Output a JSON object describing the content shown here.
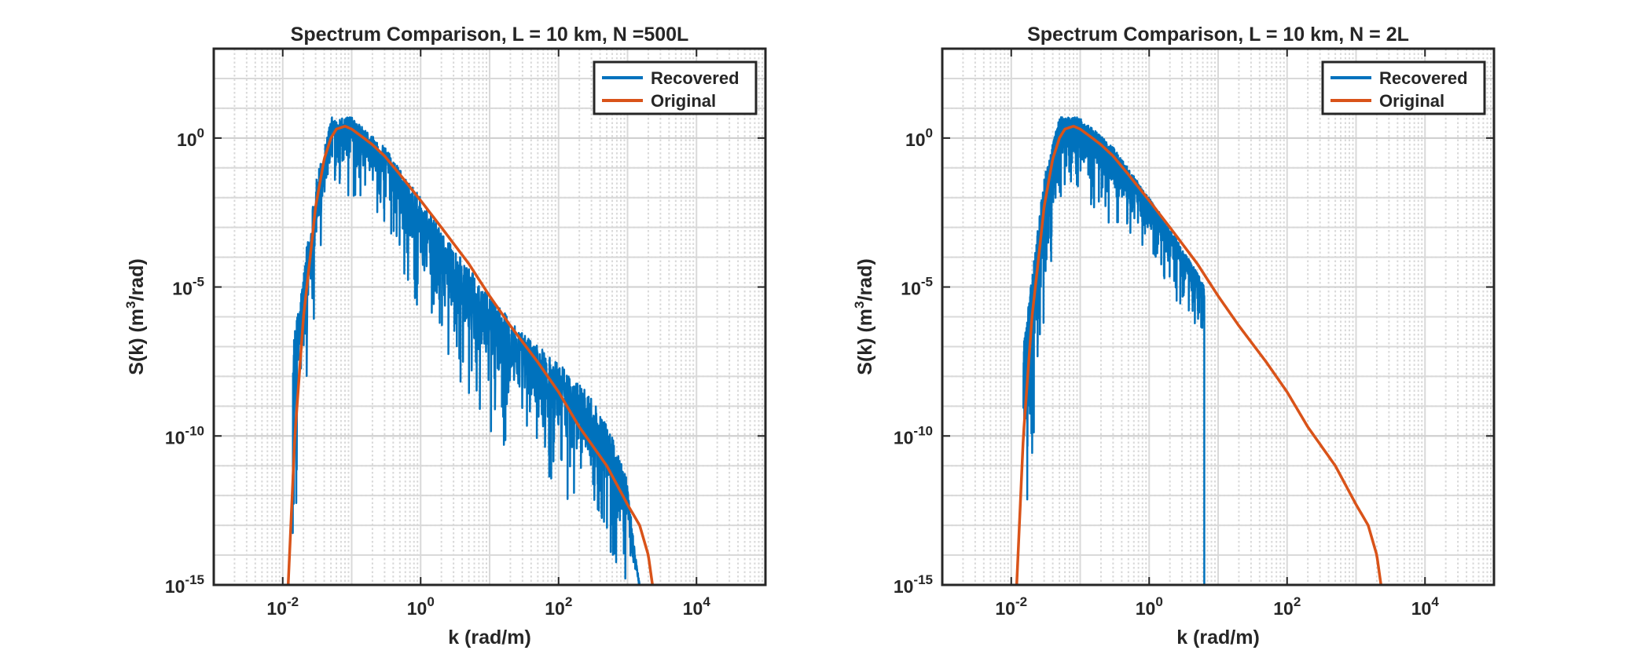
{
  "chart_data": [
    {
      "type": "line",
      "title": "Spectrum Comparison, L = 10 km, N =500L",
      "xlabel": "k (rad/m)",
      "ylabel": "S(k) (m^3/rad)",
      "xscale": "log",
      "yscale": "log",
      "xlim": [
        0.001,
        100000
      ],
      "ylim": [
        1e-15,
        1000
      ],
      "xticks": [
        0.01,
        1,
        100,
        10000
      ],
      "xtick_labels": [
        {
          "base": "10",
          "exp": "-2"
        },
        {
          "base": "10",
          "exp": "0"
        },
        {
          "base": "10",
          "exp": "2"
        },
        {
          "base": "10",
          "exp": "4"
        }
      ],
      "yticks": [
        1e-15,
        1e-10,
        1e-05,
        1
      ],
      "ytick_labels": [
        {
          "base": "10",
          "exp": "-15"
        },
        {
          "base": "10",
          "exp": "-10"
        },
        {
          "base": "10",
          "exp": "-5"
        },
        {
          "base": "10",
          "exp": "0"
        }
      ],
      "grid": "major and minor",
      "legend_position": "top-right",
      "series": [
        {
          "name": "Recovered",
          "color": "#0072BD",
          "style": "noisy",
          "band": {
            "x": [
              0.014,
              0.03,
              0.05,
              0.1,
              0.3,
              1,
              3,
              10,
              30,
              100,
              300,
              600,
              1000,
              1300,
              1500
            ],
            "upper": [
              1e-07,
              0.03,
              5,
              5,
              0.5,
              0.01,
              0.0002,
              5e-06,
              3e-07,
              3e-08,
              2e-09,
              1e-10,
              3e-12,
              1e-14,
              1e-15
            ],
            "lower": [
              1e-15,
              1e-06,
              0.01,
              0.01,
              0.001,
              1e-06,
              1e-08,
              1e-10,
              1e-11,
              1e-12,
              1e-13,
              1e-14,
              1e-15,
              1e-15,
              1e-15
            ]
          }
        },
        {
          "name": "Original",
          "color": "#D95319",
          "x": [
            0.012,
            0.015,
            0.02,
            0.025,
            0.03,
            0.04,
            0.05,
            0.06,
            0.08,
            0.1,
            0.15,
            0.2,
            0.3,
            0.5,
            1,
            2,
            5,
            10,
            20,
            50,
            100,
            200,
            500,
            1000,
            1500,
            2000,
            2300
          ],
          "y": [
            1e-15,
            1e-10,
            1e-06,
            0.0001,
            0.005,
            0.2,
            1,
            2,
            2.5,
            2,
            1,
            0.6,
            0.25,
            0.06,
            0.008,
            0.001,
            6e-05,
            5e-06,
            5e-07,
            3e-08,
            3e-09,
            2e-10,
            1e-11,
            5e-13,
            1e-13,
            1e-14,
            1e-15
          ]
        }
      ]
    },
    {
      "type": "line",
      "title": "Spectrum Comparison, L = 10 km, N = 2L",
      "xlabel": "k (rad/m)",
      "ylabel": "S(k) (m^3/rad)",
      "xscale": "log",
      "yscale": "log",
      "xlim": [
        0.001,
        100000
      ],
      "ylim": [
        1e-15,
        1000
      ],
      "xticks": [
        0.01,
        1,
        100,
        10000
      ],
      "xtick_labels": [
        {
          "base": "10",
          "exp": "-2"
        },
        {
          "base": "10",
          "exp": "0"
        },
        {
          "base": "10",
          "exp": "2"
        },
        {
          "base": "10",
          "exp": "4"
        }
      ],
      "yticks": [
        1e-15,
        1e-10,
        1e-05,
        1
      ],
      "ytick_labels": [
        {
          "base": "10",
          "exp": "-15"
        },
        {
          "base": "10",
          "exp": "-10"
        },
        {
          "base": "10",
          "exp": "-5"
        },
        {
          "base": "10",
          "exp": "0"
        }
      ],
      "grid": "major and minor",
      "legend_position": "top-right",
      "series": [
        {
          "name": "Recovered",
          "color": "#0072BD",
          "style": "noisy",
          "band": {
            "x": [
              0.015,
              0.03,
              0.05,
              0.1,
              0.3,
              1,
              2,
              3,
              5,
              6.3
            ],
            "upper": [
              1e-07,
              0.05,
              5,
              5,
              0.5,
              0.01,
              0.001,
              0.0002,
              3e-05,
              1e-05
            ],
            "lower": [
              1e-15,
              1e-06,
              0.01,
              0.01,
              0.001,
              0.0001,
              1e-05,
              1e-06,
              3e-07,
              1e-07
            ]
          }
        },
        {
          "name": "Original",
          "color": "#D95319",
          "x": [
            0.012,
            0.015,
            0.02,
            0.025,
            0.03,
            0.04,
            0.05,
            0.06,
            0.08,
            0.1,
            0.15,
            0.2,
            0.3,
            0.5,
            1,
            2,
            5,
            10,
            20,
            50,
            100,
            200,
            500,
            1000,
            1500,
            2000,
            2300
          ],
          "y": [
            1e-15,
            1e-10,
            1e-06,
            0.0001,
            0.005,
            0.2,
            1,
            2,
            2.5,
            2,
            1,
            0.6,
            0.25,
            0.06,
            0.008,
            0.001,
            6e-05,
            5e-06,
            5e-07,
            3e-08,
            3e-09,
            2e-10,
            1e-11,
            5e-13,
            1e-13,
            1e-14,
            1e-15
          ]
        }
      ]
    }
  ]
}
